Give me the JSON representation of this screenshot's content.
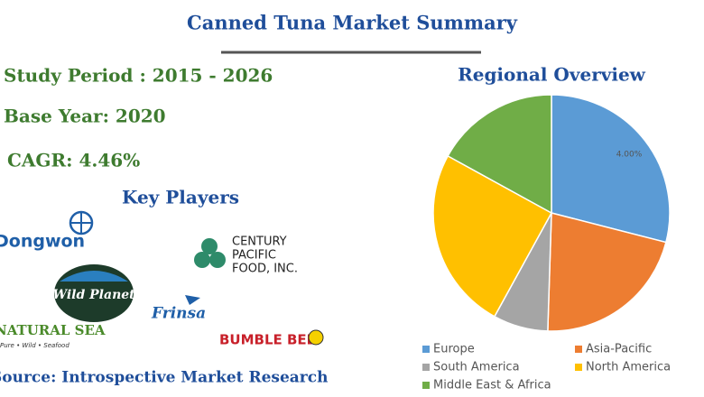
{
  "header": {
    "title": "Canned Tuna Market Summary"
  },
  "summary": {
    "study_period": "Study Period : 2015 - 2026",
    "base_year": "Base Year: 2020",
    "cagr": "CAGR: 4.46%"
  },
  "key_players": {
    "title": "Key Players",
    "logos": [
      "Dongwon",
      "CENTURY",
      "PACIFIC",
      "FOOD, INC.",
      "Wild Planet",
      "Frinsa",
      "NATURAL SEA",
      "Pure • Wild • Seafood",
      "BUMBLE BEE"
    ]
  },
  "source": "Source: Introspective Market Research",
  "chart_data": {
    "type": "pie",
    "title": "Regional Overview",
    "categories": [
      "Europe",
      "Asia-Pacific",
      "South America",
      "North America",
      "Middle East & Africa"
    ],
    "values": [
      29,
      21.5,
      7.5,
      25,
      17
    ],
    "colors": [
      "#5b9bd5",
      "#ed7d31",
      "#a5a5a5",
      "#ffc000",
      "#70ad47"
    ],
    "annotations": [
      "4.00%"
    ],
    "legend": "bottom"
  }
}
